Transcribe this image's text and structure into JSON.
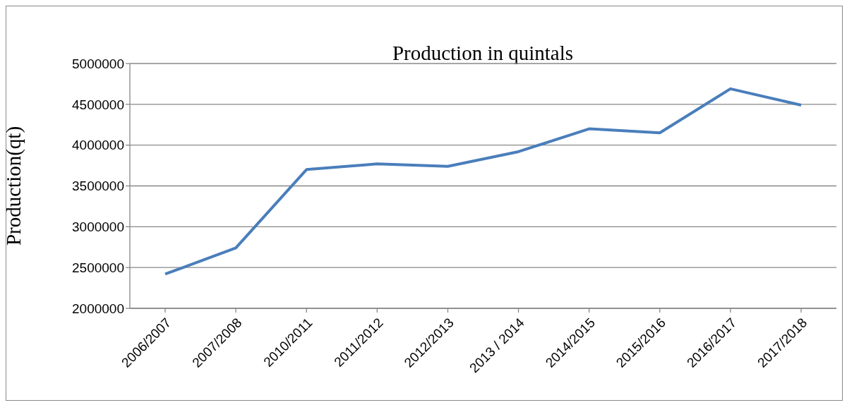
{
  "chart_data": {
    "type": "line",
    "title": "Production in quintals",
    "ylabel": "Production(qt)",
    "categories": [
      "2006/2007",
      "2007/2008",
      "2010/2011",
      "2011/2012",
      "2012/2013",
      "2013 / 2014",
      "2014/2015",
      "2015/2016",
      "2016/2017",
      "2017/2018"
    ],
    "series": [
      {
        "color": "#4a7ebb",
        "values": [
          2420000,
          2740000,
          3700000,
          3770000,
          3740000,
          3920000,
          4200000,
          4150000,
          4690000,
          4490000
        ]
      }
    ],
    "ylim": [
      2000000,
      5000000
    ],
    "yticks": [
      2000000,
      2500000,
      3000000,
      3500000,
      4000000,
      4500000,
      5000000
    ],
    "grid": "y",
    "legend": false
  }
}
